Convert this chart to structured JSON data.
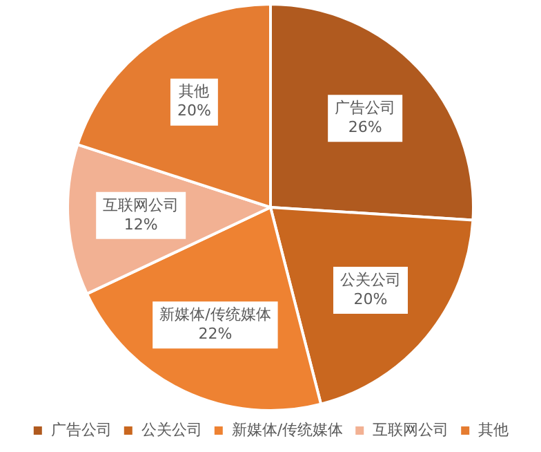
{
  "chart_data": {
    "type": "pie",
    "categories": [
      "广告公司",
      "公关公司",
      "新媒体/传统媒体",
      "互联网公司",
      "其他"
    ],
    "values": [
      26,
      20,
      22,
      12,
      20
    ],
    "value_labels": [
      "26%",
      "20%",
      "22%",
      "12%",
      "20%"
    ],
    "colors": [
      "#b05a1f",
      "#c9671f",
      "#ee8232",
      "#f2b193",
      "#e57c31"
    ],
    "legend": "bottom"
  }
}
